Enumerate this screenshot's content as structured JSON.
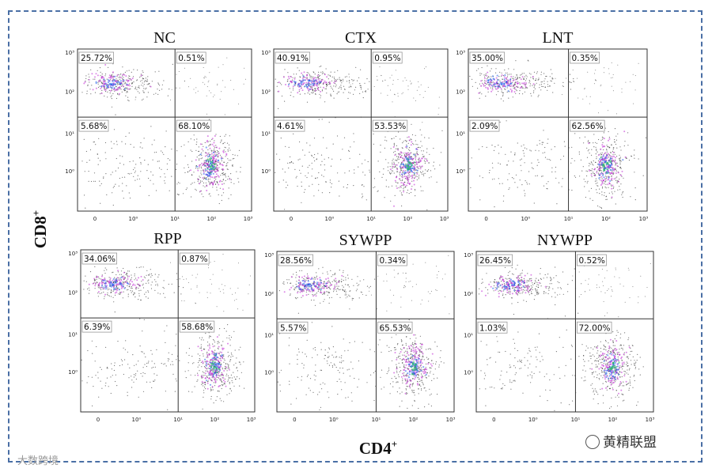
{
  "figure": {
    "x_axis_label": "CD4",
    "x_axis_superscript": "+",
    "y_axis_label": "CD8",
    "y_axis_superscript": "+",
    "tick_labels": [
      "0",
      "10⁰",
      "10¹",
      "10²",
      "10³"
    ],
    "watermark_right": "黄精联盟",
    "watermark_left": "大数跨境"
  },
  "colors": {
    "frame": "#4a6fa5",
    "gate": "#333333",
    "density_low": "#000000",
    "density_mid": "#c026d3",
    "density_high": "#2563eb",
    "density_peak": "#22c55e"
  },
  "chart_data": [
    {
      "type": "scatter",
      "title": "NC",
      "quadrants": {
        "upper_left": "25.72%",
        "upper_right": "0.51%",
        "lower_left": "5.68%",
        "lower_right": "68.10%"
      }
    },
    {
      "type": "scatter",
      "title": "CTX",
      "quadrants": {
        "upper_left": "40.91%",
        "upper_right": "0.95%",
        "lower_left": "4.61%",
        "lower_right": "53.53%"
      }
    },
    {
      "type": "scatter",
      "title": "LNT",
      "quadrants": {
        "upper_left": "35.00%",
        "upper_right": "0.35%",
        "lower_left": "2.09%",
        "lower_right": "62.56%"
      }
    },
    {
      "type": "scatter",
      "title": "RPP",
      "quadrants": {
        "upper_left": "34.06%",
        "upper_right": "0.87%",
        "lower_left": "6.39%",
        "lower_right": "58.68%"
      }
    },
    {
      "type": "scatter",
      "title": "SYWPP",
      "quadrants": {
        "upper_left": "28.56%",
        "upper_right": "0.34%",
        "lower_left": "5.57%",
        "lower_right": "65.53%"
      }
    },
    {
      "type": "scatter",
      "title": "NYWPP",
      "quadrants": {
        "upper_left": "26.45%",
        "upper_right": "0.52%",
        "lower_left": "1.03%",
        "lower_right": "72.00%"
      }
    }
  ]
}
